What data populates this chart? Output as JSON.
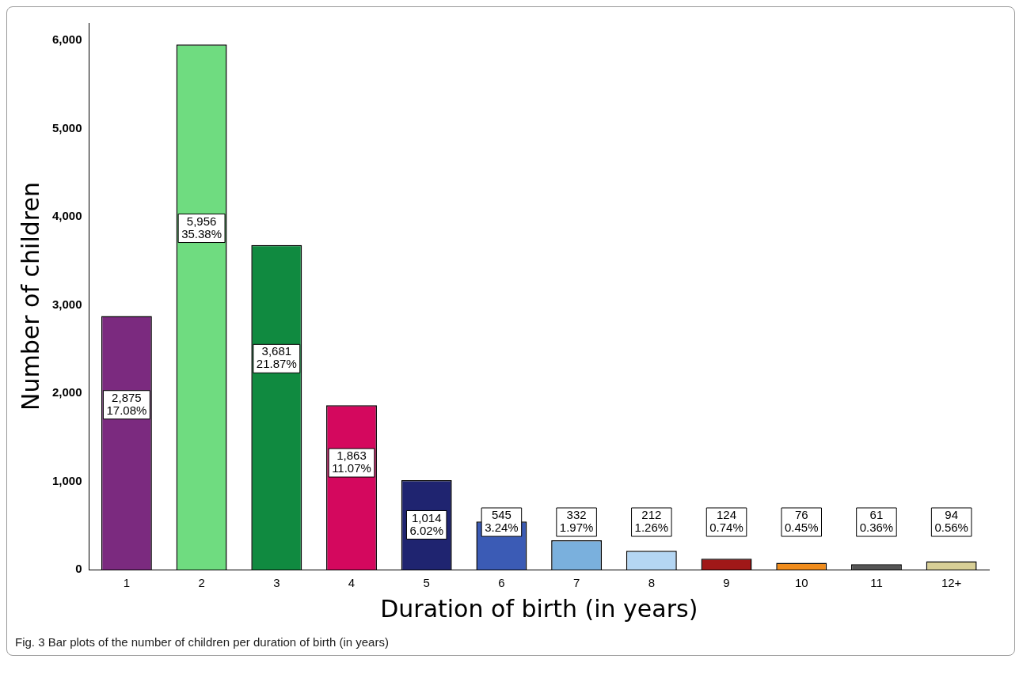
{
  "chart_data": {
    "type": "bar",
    "xlabel": "Duration of birth (in years)",
    "ylabel": "Number of children",
    "categories": [
      "1",
      "2",
      "3",
      "4",
      "5",
      "6",
      "7",
      "8",
      "9",
      "10",
      "11",
      "12+"
    ],
    "values": [
      2875,
      5956,
      3681,
      1863,
      1014,
      545,
      332,
      212,
      124,
      76,
      61,
      94
    ],
    "colors": [
      "#7b2a7f",
      "#6fdc80",
      "#108a40",
      "#d4085e",
      "#1f2470",
      "#3b5bb5",
      "#7ab0dd",
      "#b4d6f3",
      "#a01818",
      "#f08c1c",
      "#555555",
      "#d8cf96"
    ],
    "value_labels": [
      "2,875\n17.08%",
      "5,956\n35.38%",
      "3,681\n21.87%",
      "1,863\n11.07%",
      "1,014\n6.02%",
      "545\n3.24%",
      "332\n1.97%",
      "212\n1.26%",
      "124\n0.74%",
      "76\n0.45%",
      "61\n0.36%",
      "94\n0.56%"
    ],
    "ylim": [
      0,
      6200
    ],
    "yticks": [
      {
        "value": 0,
        "label": "0"
      },
      {
        "value": 1000,
        "label": "1,000"
      },
      {
        "value": 2000,
        "label": "2,000"
      },
      {
        "value": 3000,
        "label": "3,000"
      },
      {
        "value": 4000,
        "label": "4,000"
      },
      {
        "value": 5000,
        "label": "5,000"
      },
      {
        "value": 6000,
        "label": "6,000"
      }
    ],
    "grid": false,
    "legend": false,
    "annotations": [
      "Fig. 3 Bar plots of the number of children per duration of birth (in years)"
    ]
  }
}
